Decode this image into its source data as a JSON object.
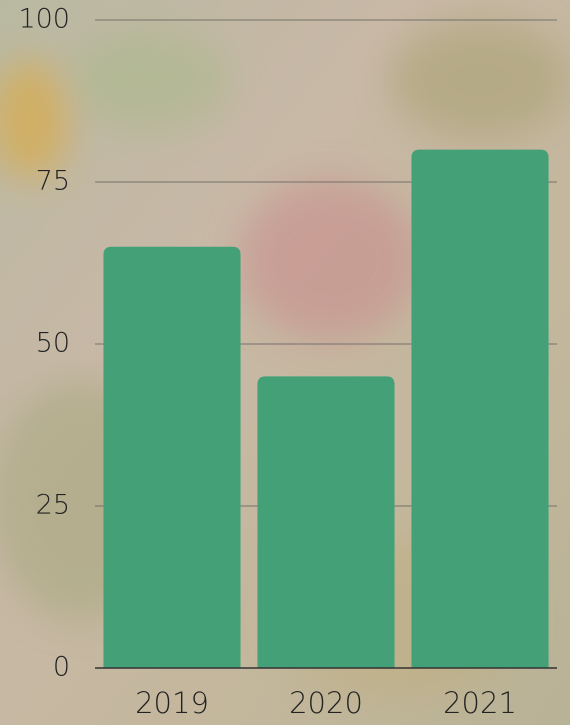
{
  "chart_data": {
    "type": "bar",
    "categories": [
      "2019",
      "2020",
      "2021"
    ],
    "values": [
      65,
      45,
      80
    ],
    "color": "#43a077",
    "ylim": [
      0,
      100
    ],
    "yticks": [
      0,
      25,
      50,
      75,
      100
    ],
    "grid": true
  }
}
